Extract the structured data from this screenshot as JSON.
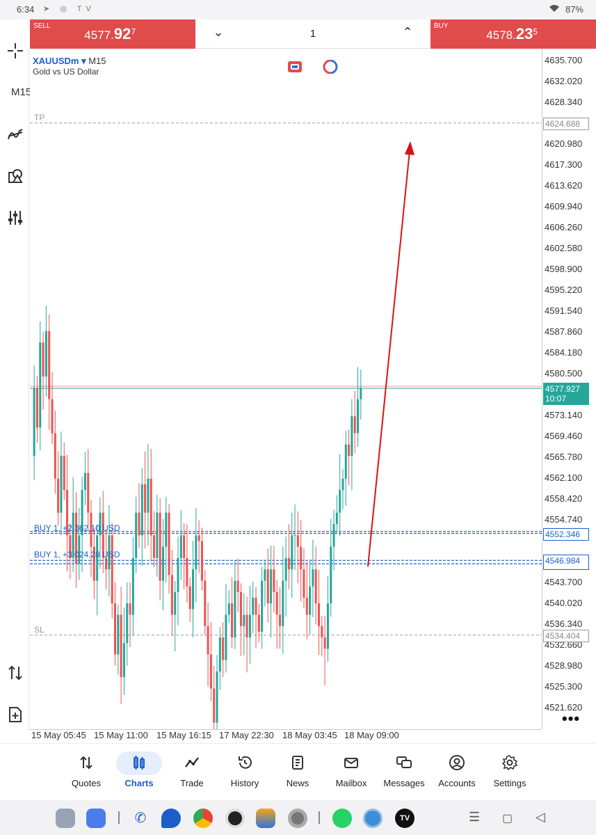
{
  "status_bar": {
    "time": "6:34",
    "battery": "87%"
  },
  "trade_bar": {
    "sell_label": "SELL",
    "sell_price_main": "4577.",
    "sell_price_big": "92",
    "sell_price_sup": "7",
    "lot": "1",
    "buy_label": "BUY",
    "buy_price_main": "4578.",
    "buy_price_big": "23",
    "buy_price_sup": "5"
  },
  "chart": {
    "symbol": "XAUUSDm",
    "timeframe": "M15",
    "description": "Gold vs US Dollar",
    "left_timeframe_label": "M15",
    "tp_label": "TP",
    "sl_label": "SL",
    "order1_label": "BUY 1, +2 362.10 USD",
    "order2_label": "BUY 1, +3 024.28 USD",
    "tp_price": "4624.688",
    "current_price": "4577.927",
    "current_time_left": "10:07",
    "order1_price": "4552.346",
    "order2_price": "4546.984",
    "sl_price": "4534.404",
    "more": "•••"
  },
  "chart_data": {
    "type": "candlestick",
    "symbol": "XAUUSDm",
    "timeframe": "M15",
    "y_ticks": [
      "4635.700",
      "4632.020",
      "4628.340",
      "4624.688",
      "4620.980",
      "4617.300",
      "4613.620",
      "4609.940",
      "4606.260",
      "4602.580",
      "4598.900",
      "4595.220",
      "4591.540",
      "4587.860",
      "4584.180",
      "4580.500",
      "4577.927",
      "4573.140",
      "4569.460",
      "4565.780",
      "4562.100",
      "4558.420",
      "4554.740",
      "4552.346",
      "4546.984",
      "4543.700",
      "4540.020",
      "4536.340",
      "4534.404",
      "4532.660",
      "4528.980",
      "4525.300",
      "4521.620"
    ],
    "x_ticks": [
      "15 May 05:45",
      "15 May 11:00",
      "15 May 16:15",
      "17 May 22:30",
      "18 May 03:45",
      "18 May 09:00"
    ],
    "ylim": [
      4519.5,
      4638.0
    ],
    "levels": {
      "tp": 4624.688,
      "current": 4577.927,
      "order1": 4552.346,
      "order2": 4546.984,
      "sl": 4534.404
    },
    "arrow": {
      "from": 4546.5,
      "to": 4621.0
    },
    "candle_colors": {
      "up": "#26a69a",
      "down": "#ef5350"
    },
    "path": [
      4566,
      4578,
      4571,
      4586,
      4580,
      4588,
      4576,
      4570,
      4562,
      4556,
      4566,
      4560,
      4552,
      4548,
      4556,
      4547,
      4552,
      4560,
      4563,
      4556,
      4550,
      4544,
      4552,
      4556,
      4548,
      4546,
      4552,
      4540,
      4531,
      4538,
      4527,
      4533,
      4540,
      4538,
      4548,
      4556,
      4552,
      4561,
      4556,
      4562,
      4552,
      4548,
      4556,
      4544,
      4550,
      4556,
      4545,
      4538,
      4542,
      4548,
      4552,
      4548,
      4543,
      4539,
      4546,
      4552,
      4551,
      4544,
      4536,
      4531,
      4525,
      4519,
      4528,
      4534,
      4530,
      4538,
      4540,
      4534,
      4544,
      4542,
      4536,
      4538,
      4534,
      4538,
      4541,
      4538,
      4535,
      4544,
      4546,
      4540,
      4546,
      4542,
      4538,
      4536,
      4544,
      4548,
      4546,
      4552,
      4552,
      4550,
      4546,
      4541,
      4538,
      4543,
      4546,
      4540,
      4536,
      4534,
      4532,
      4540,
      4550,
      4554,
      4556,
      4560,
      4562,
      4568,
      4566,
      4573,
      4570,
      4576,
      4578
    ],
    "grid": false
  },
  "left_toolbar": {
    "crosshair": "crosshair-icon",
    "timeframe": "M15",
    "indicators": "indicators-icon",
    "objects": "objects-icon",
    "settings": "sliders-icon",
    "trade_toggle": "up-down-arrows-icon",
    "new_order": "new-order-icon"
  },
  "bottom_nav": [
    {
      "label": "Quotes",
      "icon": "quotes-icon"
    },
    {
      "label": "Charts",
      "icon": "charts-icon",
      "active": true
    },
    {
      "label": "Trade",
      "icon": "trade-icon"
    },
    {
      "label": "History",
      "icon": "history-icon"
    },
    {
      "label": "News",
      "icon": "news-icon"
    },
    {
      "label": "Mailbox",
      "icon": "mailbox-icon"
    },
    {
      "label": "Messages",
      "icon": "messages-icon"
    },
    {
      "label": "Accounts",
      "icon": "accounts-icon"
    },
    {
      "label": "Settings",
      "icon": "settings-icon"
    }
  ],
  "colors": {
    "sell": "#e04b4b",
    "buy": "#e04b4b",
    "accent": "#1c5fc8",
    "current": "#26a69a",
    "arrow": "#dd1111"
  }
}
